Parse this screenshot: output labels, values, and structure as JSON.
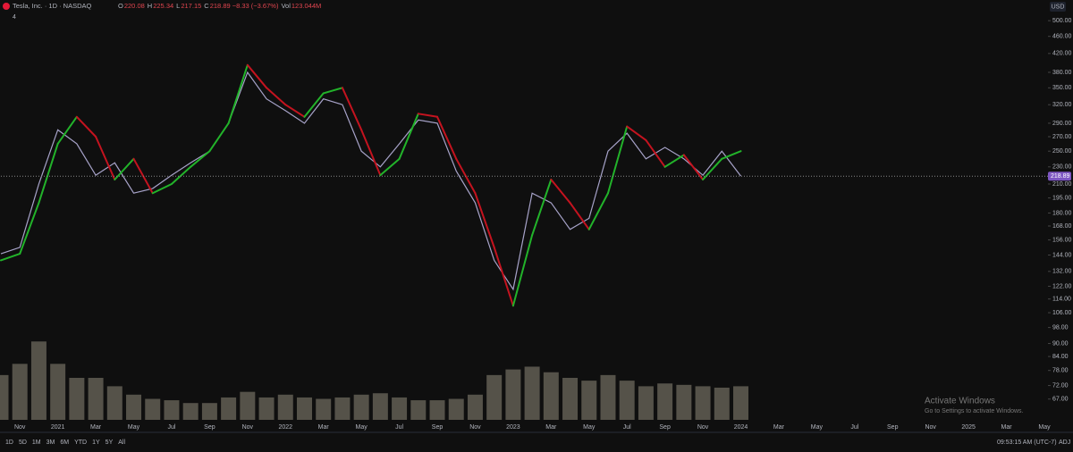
{
  "header": {
    "symbol": "Tesla, Inc. · 1D · NASDAQ",
    "ohlc": [
      [
        "O",
        "220.08"
      ],
      [
        "H",
        "225.34"
      ],
      [
        "L",
        "217.15"
      ],
      [
        "C",
        "218.89 −8.33 (−3.67%)"
      ],
      [
        "Vol",
        "123.044M"
      ]
    ],
    "indicator_count": "4",
    "currency": "USD"
  },
  "chart_data": {
    "type": "line",
    "log": true,
    "categories": [
      null,
      "Nov",
      null,
      "2021",
      null,
      "Mar",
      null,
      "May",
      null,
      "Jul",
      null,
      "Sep",
      null,
      "Nov",
      null,
      "2022",
      null,
      "Mar",
      null,
      "May",
      null,
      "Jul",
      null,
      "Sep",
      null,
      "Nov",
      null,
      "2023",
      null,
      "Mar",
      null,
      "May",
      null,
      "Jul",
      null,
      "Sep",
      null,
      "Nov",
      null,
      "2024",
      null,
      "Mar",
      null,
      "May",
      null,
      "Jul",
      null,
      "Sep",
      null,
      "Nov",
      null,
      "2025",
      null,
      "Mar",
      null,
      "May"
    ],
    "series": [
      {
        "color": "#a7a3c9",
        "values": [
          145,
          150,
          210,
          280,
          260,
          220,
          235,
          200,
          205,
          220,
          235,
          250,
          290,
          380,
          330,
          310,
          290,
          330,
          320,
          250,
          230,
          260,
          295,
          290,
          225,
          190,
          140,
          120,
          200,
          190,
          165,
          175,
          250,
          275,
          240,
          255,
          240,
          220,
          250,
          219,
          null,
          null,
          null,
          null,
          null,
          null,
          null,
          null,
          null,
          null,
          null,
          null,
          null,
          null,
          null,
          null
        ]
      },
      {
        "color": "#8f8a7a",
        "axis": "y2",
        "values": [
          160,
          200,
          280,
          200,
          150,
          150,
          120,
          90,
          75,
          70,
          60,
          60,
          80,
          100,
          80,
          90,
          80,
          75,
          80,
          90,
          95,
          80,
          70,
          70,
          75,
          90,
          160,
          180,
          190,
          170,
          150,
          140,
          160,
          140,
          120,
          130,
          125,
          120,
          115,
          120,
          null,
          null,
          null,
          null,
          null,
          null,
          null,
          null,
          null,
          null,
          null,
          null,
          null,
          null,
          null,
          null
        ]
      }
    ],
    "indicator": {
      "up_color": "#22b32a",
      "down_color": "#c4131f",
      "values": [
        140,
        145,
        190,
        260,
        300,
        270,
        215,
        240,
        200,
        210,
        230,
        250,
        290,
        395,
        350,
        320,
        300,
        340,
        350,
        280,
        220,
        240,
        305,
        300,
        240,
        200,
        150,
        110,
        160,
        215,
        190,
        165,
        200,
        285,
        265,
        230,
        245,
        215,
        240,
        250,
        null,
        null,
        null,
        null,
        null,
        null,
        null,
        null,
        null,
        null,
        null,
        null,
        null,
        null,
        null,
        null
      ]
    },
    "last_price": 218.89,
    "last_price_color": "#7e57c2",
    "ylim": [
      60,
      558
    ],
    "y2lim": [
      0,
      1500
    ],
    "yticks": [
      {
        "value": 500,
        "label": "500.00"
      },
      {
        "value": 460,
        "label": "460.00"
      },
      {
        "value": 420,
        "label": "420.00"
      },
      {
        "value": 380,
        "label": "380.00"
      },
      {
        "value": 350,
        "label": "350.00"
      },
      {
        "value": 320,
        "label": "320.00"
      },
      {
        "value": 290,
        "label": "290.00"
      },
      {
        "value": 270,
        "label": "270.00"
      },
      {
        "value": 250,
        "label": "250.00"
      },
      {
        "value": 230,
        "label": "230.00"
      },
      {
        "value": 210,
        "label": "210.00"
      },
      {
        "value": 195,
        "label": "195.00"
      },
      {
        "value": 180,
        "label": "180.00"
      },
      {
        "value": 168,
        "label": "168.00"
      },
      {
        "value": 156,
        "label": "156.00"
      },
      {
        "value": 144,
        "label": "144.00"
      },
      {
        "value": 132,
        "label": "132.00"
      },
      {
        "value": 122,
        "label": "122.00"
      },
      {
        "value": 114,
        "label": "114.00"
      },
      {
        "value": 106,
        "label": "106.00"
      },
      {
        "value": 98,
        "label": "98.00"
      },
      {
        "value": 90,
        "label": "90.00"
      },
      {
        "value": 84,
        "label": "84.00"
      },
      {
        "value": 78,
        "label": "78.00"
      },
      {
        "value": 72,
        "label": "72.00"
      },
      {
        "value": 67,
        "label": "67.00"
      }
    ]
  },
  "toolbar": {
    "ranges": [
      "1D",
      "5D",
      "1M",
      "3M",
      "6M",
      "YTD",
      "1Y",
      "5Y",
      "All"
    ],
    "clock": "09:53:15 AM (UTC-7)",
    "adj": "ADJ"
  },
  "watermark": {
    "title": "Activate Windows",
    "text": "Go to Settings to activate Windows."
  }
}
